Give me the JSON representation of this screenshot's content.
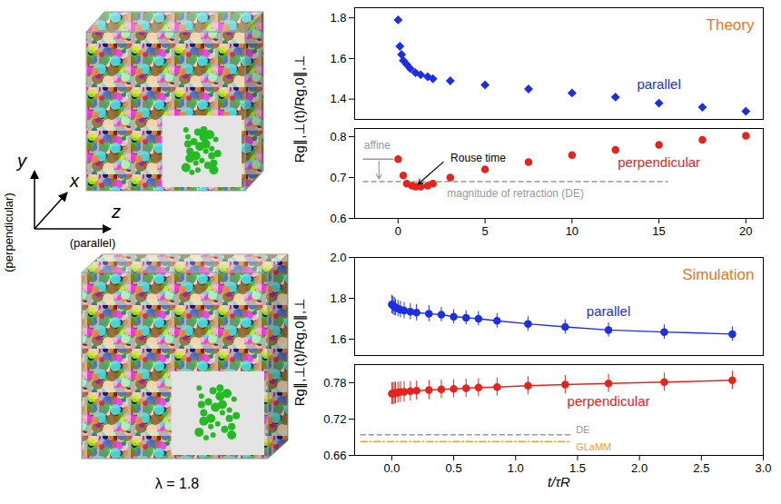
{
  "chart_data": [
    {
      "type": "scatter",
      "title": "Theory",
      "ylabel": "Rg∥,⊥(t)/Rg,0∥,⊥",
      "tick_labels": "y",
      "xlim": [
        -2.5,
        21
      ],
      "ylim": [
        1.3,
        1.85
      ],
      "yticks": [
        1.4,
        1.6,
        1.8
      ],
      "series": [
        {
          "name": "parallel",
          "color": "#1c2fe6",
          "marker": "diamond",
          "x": [
            0,
            0.1,
            0.2,
            0.3,
            0.5,
            0.7,
            1,
            1.3,
            1.7,
            2,
            3,
            5,
            7.5,
            10,
            12.5,
            15,
            17.5,
            20
          ],
          "values": [
            1.79,
            1.66,
            1.62,
            1.59,
            1.57,
            1.55,
            1.53,
            1.52,
            1.51,
            1.5,
            1.49,
            1.47,
            1.45,
            1.43,
            1.41,
            1.38,
            1.36,
            1.34
          ]
        }
      ]
    },
    {
      "type": "scatter",
      "xlim": [
        -2.5,
        21
      ],
      "xticks": [
        0,
        5,
        10,
        15,
        20
      ],
      "ylim": [
        0.6,
        0.82
      ],
      "yticks": [
        0.6,
        0.7,
        0.8
      ],
      "series": [
        {
          "name": "perpendicular",
          "color": "#e8231c",
          "marker": "circle",
          "x": [
            0,
            0.3,
            0.5,
            0.8,
            1,
            1.3,
            1.7,
            2,
            3,
            5,
            7.5,
            10,
            12.5,
            15,
            17.5,
            20
          ],
          "values": [
            0.745,
            0.705,
            0.685,
            0.68,
            0.678,
            0.678,
            0.68,
            0.685,
            0.7,
            0.72,
            0.738,
            0.755,
            0.768,
            0.78,
            0.792,
            0.802
          ]
        }
      ],
      "reference_lines": [
        {
          "label": "magnitude of retraction (DE)",
          "y": 0.69,
          "x": [
            -2,
            15.5
          ],
          "line_style": "dashed",
          "color": "#999999"
        },
        {
          "y": 0.745,
          "x": [
            -2,
            -0.3
          ],
          "line_style": "solid",
          "color": "#999999"
        }
      ],
      "annotations": [
        {
          "text": "affine",
          "x": -1.2,
          "y": 0.778,
          "color": "#999999",
          "arrow_from": [
            -1.1,
            0.74
          ],
          "arrow_to": [
            -1.1,
            0.697
          ]
        },
        {
          "text": "Rouse time",
          "x": 4.6,
          "y": 0.748,
          "color": "#000000",
          "arrow_from": [
            2.6,
            0.738
          ],
          "arrow_to": [
            1.15,
            0.684
          ]
        }
      ]
    },
    {
      "type": "line",
      "title": "Simulation",
      "ylabel": "Rg∥,⊥(t)/Rg,0∥,⊥",
      "tick_labels": "y",
      "xlim": [
        -0.3,
        3.0
      ],
      "ylim": [
        1.52,
        2.0
      ],
      "yticks": [
        1.6,
        1.8,
        {
          "value": 2,
          "label": "2.0"
        }
      ],
      "series": [
        {
          "name": "parallel",
          "color": "#1c2fe6",
          "marker": "circle",
          "line_style": "solid",
          "x": [
            0,
            0.01,
            0.02,
            0.03,
            0.05,
            0.07,
            0.1,
            0.15,
            0.2,
            0.3,
            0.4,
            0.5,
            0.6,
            0.7,
            0.85,
            1.1,
            1.4,
            1.75,
            2.2,
            2.75
          ],
          "values": [
            1.77,
            1.765,
            1.76,
            1.755,
            1.75,
            1.745,
            1.74,
            1.735,
            1.73,
            1.725,
            1.72,
            1.71,
            1.705,
            1.7,
            1.69,
            1.675,
            1.66,
            1.645,
            1.635,
            1.625
          ],
          "errors": [
            0.045,
            0.045,
            0.045,
            0.04,
            0.04,
            0.04,
            0.04,
            0.04,
            0.04,
            0.04,
            0.035,
            0.035,
            0.035,
            0.035,
            0.035,
            0.035,
            0.035,
            0.035,
            0.035,
            0.035
          ]
        }
      ]
    },
    {
      "type": "line",
      "xlabel": "t/τR",
      "xlim": [
        -0.3,
        3.0
      ],
      "xticks": [
        {
          "value": 0,
          "label": "0.0"
        },
        0.5,
        {
          "value": 1,
          "label": "1.0"
        },
        1.5,
        {
          "value": 2,
          "label": "2.0"
        },
        2.5,
        {
          "value": 3,
          "label": "3.0"
        }
      ],
      "ylim": [
        0.66,
        0.81
      ],
      "yticks": [
        0.66,
        0.72,
        0.78
      ],
      "series": [
        {
          "name": "perpendicular",
          "color": "#e8231c",
          "marker": "circle",
          "line_style": "solid",
          "x": [
            0,
            0.01,
            0.02,
            0.03,
            0.05,
            0.07,
            0.1,
            0.15,
            0.2,
            0.3,
            0.4,
            0.5,
            0.6,
            0.7,
            0.85,
            1.1,
            1.4,
            1.75,
            2.2,
            2.75
          ],
          "values": [
            0.762,
            0.762,
            0.763,
            0.763,
            0.764,
            0.765,
            0.765,
            0.766,
            0.767,
            0.768,
            0.769,
            0.77,
            0.771,
            0.772,
            0.773,
            0.775,
            0.777,
            0.779,
            0.781,
            0.784
          ],
          "errors": [
            0.018,
            0.018,
            0.018,
            0.018,
            0.017,
            0.017,
            0.017,
            0.016,
            0.016,
            0.016,
            0.015,
            0.015,
            0.015,
            0.015,
            0.015,
            0.015,
            0.015,
            0.015,
            0.015,
            0.015
          ]
        }
      ],
      "reference_lines": [
        {
          "label": "DE",
          "y": 0.694,
          "x": [
            -0.25,
            1.45
          ],
          "line_style": "dashed",
          "color": "#999999"
        },
        {
          "label": "GLaMM",
          "y": 0.683,
          "x": [
            -0.25,
            1.45
          ],
          "line_style": "dashdot",
          "color": "#f0a030"
        }
      ]
    }
  ],
  "diagram": {
    "axes": [
      {
        "label": "y",
        "note": "(perpendicular)"
      },
      {
        "label": "x"
      },
      {
        "label": "z",
        "note": "(parallel)"
      }
    ],
    "caption": "λ = 1.8"
  }
}
